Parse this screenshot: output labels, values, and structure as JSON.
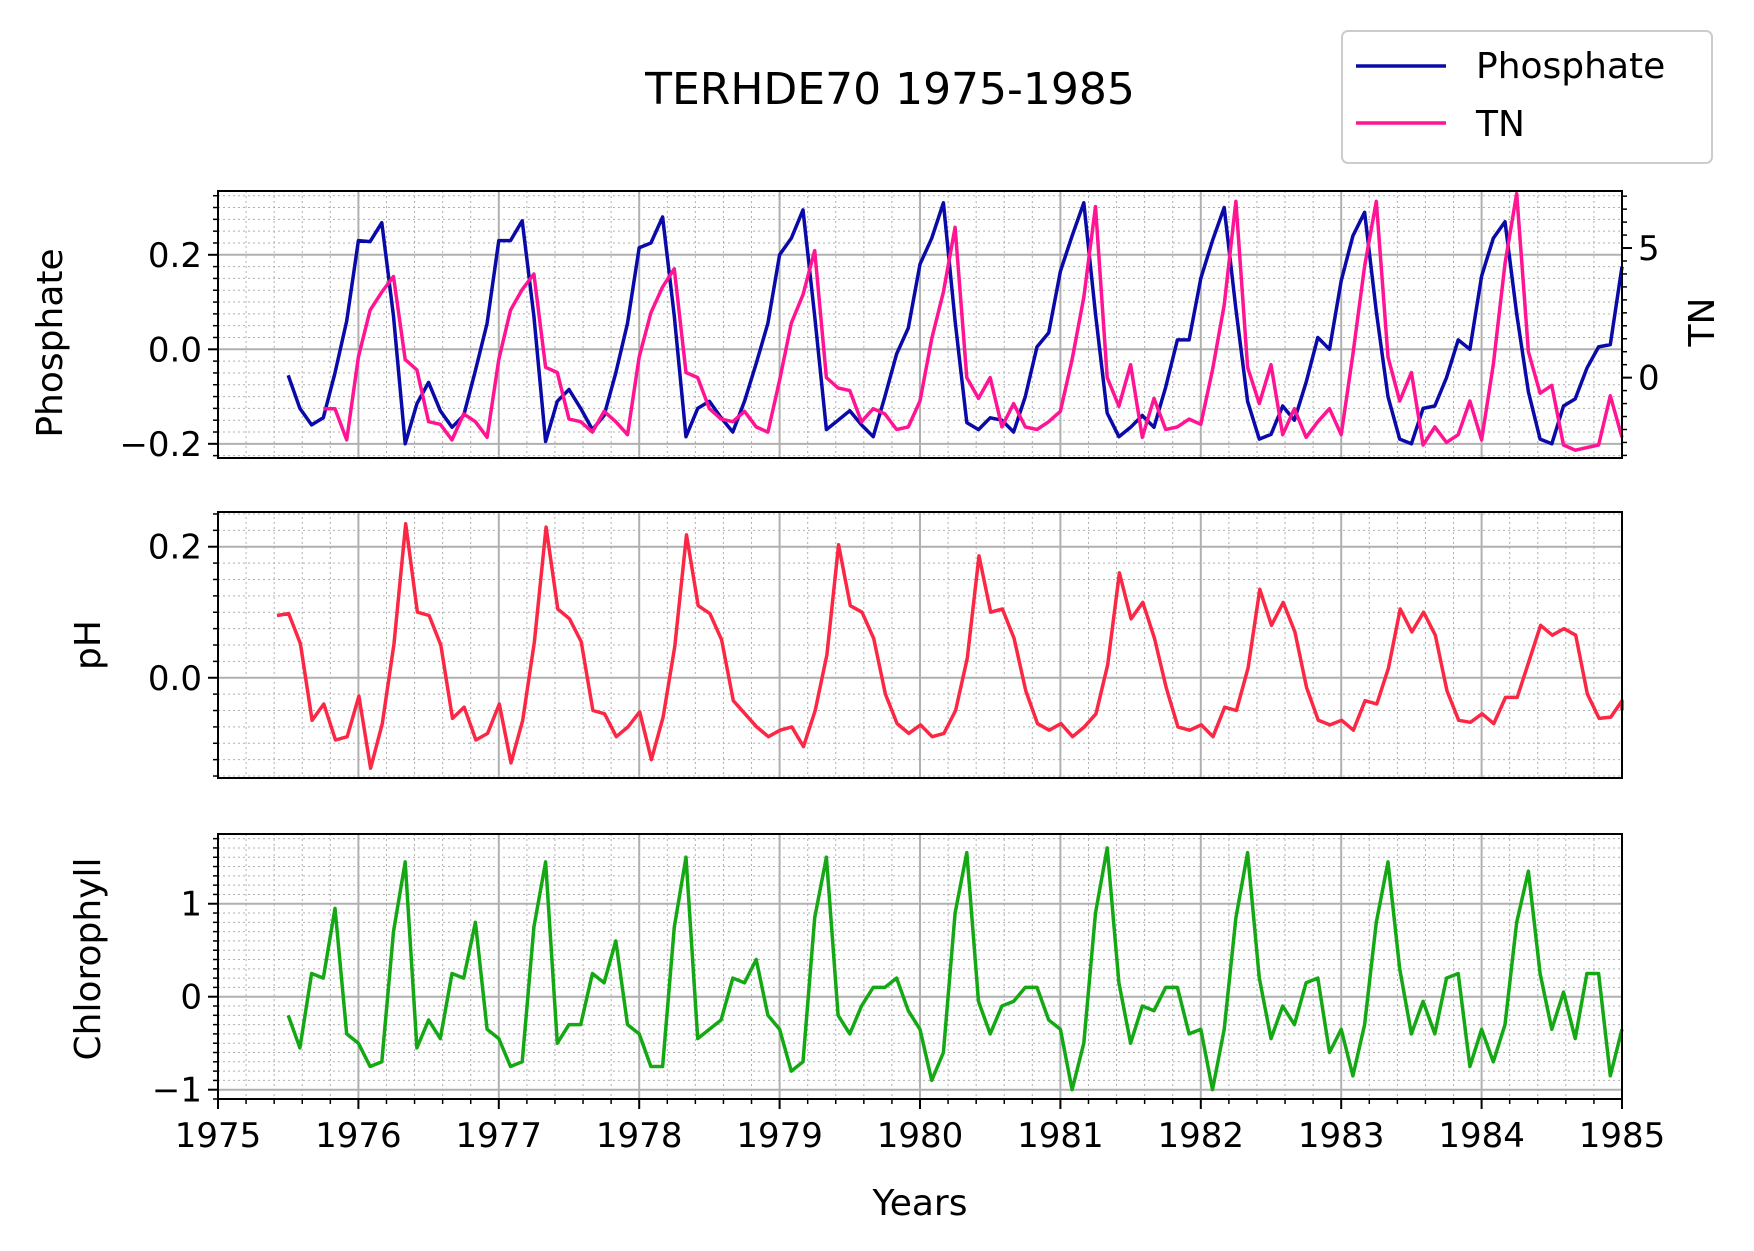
{
  "chart_data": [
    {
      "type": "line",
      "title": "TERHDE70 1975-1985",
      "ylabel": "Phosphate",
      "ylabel_right": "TN",
      "xlim": [
        1975,
        1985
      ],
      "ylim": [
        -0.23,
        0.335
      ],
      "ylim_right": [
        -3.1,
        7.2
      ],
      "yticks": [
        {
          "value": 0.2,
          "label": "0.2"
        },
        {
          "value": 0.0,
          "label": "0.0"
        },
        {
          "value": -0.2,
          "label": "−0.2"
        }
      ],
      "yticks_right": [
        {
          "value": 5,
          "label": "5"
        },
        {
          "value": 0,
          "label": "0"
        }
      ],
      "grid": true,
      "legend_position": "top-right, above panel",
      "series": [
        {
          "name": "Phosphate",
          "color": "#0a0aa8",
          "axis": "left",
          "x0": 1975.5,
          "step": 0.0833333,
          "values": [
            -0.055,
            -0.125,
            -0.16,
            -0.145,
            -0.05,
            0.06,
            0.23,
            0.228,
            0.268,
            0.07,
            -0.2,
            -0.115,
            -0.07,
            -0.13,
            -0.165,
            -0.14,
            -0.045,
            0.055,
            0.23,
            0.23,
            0.272,
            0.07,
            -0.195,
            -0.11,
            -0.085,
            -0.125,
            -0.17,
            -0.14,
            -0.05,
            0.055,
            0.215,
            0.225,
            0.28,
            0.07,
            -0.185,
            -0.125,
            -0.11,
            -0.145,
            -0.175,
            -0.11,
            -0.03,
            0.055,
            0.2,
            0.235,
            0.295,
            0.07,
            -0.17,
            -0.15,
            -0.13,
            -0.16,
            -0.185,
            -0.1,
            -0.01,
            0.045,
            0.18,
            0.235,
            0.31,
            0.06,
            -0.155,
            -0.17,
            -0.145,
            -0.15,
            -0.175,
            -0.1,
            0.005,
            0.035,
            0.165,
            0.24,
            0.31,
            0.075,
            -0.135,
            -0.185,
            -0.165,
            -0.14,
            -0.165,
            -0.08,
            0.02,
            0.02,
            0.15,
            0.23,
            0.3,
            0.085,
            -0.11,
            -0.19,
            -0.18,
            -0.12,
            -0.15,
            -0.07,
            0.025,
            0.0,
            0.145,
            0.24,
            0.29,
            0.08,
            -0.1,
            -0.19,
            -0.2,
            -0.125,
            -0.12,
            -0.06,
            0.02,
            0.0,
            0.155,
            0.235,
            0.27,
            0.075,
            -0.09,
            -0.19,
            -0.2,
            -0.12,
            -0.105,
            -0.04,
            0.005,
            0.01,
            0.175
          ]
        },
        {
          "name": "TN",
          "color": "#ff1493",
          "axis": "right",
          "x0": 1975.75,
          "step": 0.0833333,
          "values": [
            -1.2,
            -1.2,
            -2.4,
            0.8,
            2.6,
            3.3,
            3.9,
            0.7,
            0.3,
            -1.7,
            -1.8,
            -2.4,
            -1.4,
            -1.7,
            -2.3,
            0.7,
            2.6,
            3.4,
            4.0,
            0.4,
            0.2,
            -1.6,
            -1.7,
            -2.1,
            -1.3,
            -1.7,
            -2.2,
            0.8,
            2.5,
            3.5,
            4.2,
            0.2,
            0.0,
            -1.2,
            -1.6,
            -1.7,
            -1.3,
            -1.9,
            -2.1,
            -0.1,
            2.1,
            3.2,
            4.9,
            0.0,
            -0.4,
            -0.5,
            -1.7,
            -1.2,
            -1.4,
            -2.0,
            -1.9,
            -0.9,
            1.5,
            3.3,
            5.8,
            0.0,
            -0.8,
            0.0,
            -1.9,
            -1.0,
            -1.9,
            -2.0,
            -1.7,
            -1.3,
            0.7,
            3.1,
            6.6,
            0.0,
            -1.1,
            0.5,
            -2.3,
            -0.8,
            -2.0,
            -1.9,
            -1.6,
            -1.8,
            0.3,
            2.8,
            6.8,
            0.4,
            -1.0,
            0.5,
            -2.2,
            -1.2,
            -2.3,
            -1.7,
            -1.2,
            -2.2,
            0.9,
            4.3,
            6.8,
            0.8,
            -0.9,
            0.2,
            -2.6,
            -1.9,
            -2.5,
            -2.2,
            -0.9,
            -2.4,
            0.5,
            4.4,
            7.1,
            1.0,
            -0.6,
            -0.3,
            -2.6,
            -2.8,
            -2.7,
            -2.6,
            -0.7,
            -2.3
          ]
        }
      ]
    },
    {
      "type": "line",
      "ylabel": "pH",
      "xlim": [
        1975,
        1985
      ],
      "ylim": [
        -0.153,
        0.253
      ],
      "yticks": [
        {
          "value": 0.2,
          "label": "0.2"
        },
        {
          "value": 0.0,
          "label": "0.0"
        }
      ],
      "grid": true,
      "series": [
        {
          "color": "#fa2845",
          "x0": 1975.42,
          "step": 0.0833333,
          "values": [
            0.095,
            0.098,
            0.052,
            -0.065,
            -0.04,
            -0.095,
            -0.09,
            -0.028,
            -0.138,
            -0.07,
            0.052,
            0.235,
            0.1,
            0.095,
            0.05,
            -0.062,
            -0.045,
            -0.095,
            -0.085,
            -0.04,
            -0.13,
            -0.065,
            0.055,
            0.23,
            0.105,
            0.09,
            0.055,
            -0.05,
            -0.055,
            -0.09,
            -0.075,
            -0.052,
            -0.125,
            -0.06,
            0.048,
            0.218,
            0.11,
            0.098,
            0.058,
            -0.035,
            -0.055,
            -0.075,
            -0.09,
            -0.08,
            -0.075,
            -0.105,
            -0.05,
            0.035,
            0.203,
            0.11,
            0.1,
            0.06,
            -0.025,
            -0.07,
            -0.085,
            -0.072,
            -0.09,
            -0.085,
            -0.05,
            0.03,
            0.186,
            0.1,
            0.105,
            0.06,
            -0.02,
            -0.07,
            -0.08,
            -0.07,
            -0.09,
            -0.075,
            -0.055,
            0.02,
            0.16,
            0.09,
            0.115,
            0.06,
            -0.015,
            -0.075,
            -0.08,
            -0.072,
            -0.09,
            -0.045,
            -0.05,
            0.015,
            0.135,
            0.08,
            0.115,
            0.07,
            -0.015,
            -0.065,
            -0.072,
            -0.065,
            -0.08,
            -0.035,
            -0.04,
            0.015,
            0.105,
            0.07,
            0.1,
            0.065,
            -0.02,
            -0.065,
            -0.068,
            -0.055,
            -0.07,
            -0.03,
            -0.03,
            0.025,
            0.08,
            0.065,
            0.075,
            0.065,
            -0.025,
            -0.062,
            -0.06,
            -0.035,
            -0.05
          ]
        }
      ]
    },
    {
      "type": "line",
      "ylabel": "Chlorophyll",
      "xlabel": "Years",
      "xlim": [
        1975,
        1985
      ],
      "ylim": [
        -1.1,
        1.75
      ],
      "yticks": [
        {
          "value": 1,
          "label": "1"
        },
        {
          "value": 0,
          "label": "0"
        },
        {
          "value": -1,
          "label": "−1"
        }
      ],
      "xticks": [
        {
          "value": 1975,
          "label": "1975"
        },
        {
          "value": 1976,
          "label": "1976"
        },
        {
          "value": 1977,
          "label": "1977"
        },
        {
          "value": 1978,
          "label": "1978"
        },
        {
          "value": 1979,
          "label": "1979"
        },
        {
          "value": 1980,
          "label": "1980"
        },
        {
          "value": 1981,
          "label": "1981"
        },
        {
          "value": 1982,
          "label": "1982"
        },
        {
          "value": 1983,
          "label": "1983"
        },
        {
          "value": 1984,
          "label": "1984"
        },
        {
          "value": 1985,
          "label": "1985"
        }
      ],
      "grid": true,
      "series": [
        {
          "color": "#14a814",
          "x0": 1975.5,
          "step": 0.0833333,
          "values": [
            -0.2,
            -0.55,
            0.25,
            0.2,
            0.95,
            -0.4,
            -0.5,
            -0.75,
            -0.7,
            0.7,
            1.45,
            -0.55,
            -0.25,
            -0.45,
            0.25,
            0.2,
            0.8,
            -0.35,
            -0.45,
            -0.75,
            -0.7,
            0.75,
            1.45,
            -0.5,
            -0.3,
            -0.3,
            0.25,
            0.15,
            0.6,
            -0.3,
            -0.4,
            -0.75,
            -0.75,
            0.75,
            1.5,
            -0.45,
            -0.35,
            -0.25,
            0.2,
            0.15,
            0.4,
            -0.2,
            -0.35,
            -0.8,
            -0.7,
            0.85,
            1.5,
            -0.2,
            -0.4,
            -0.1,
            0.1,
            0.1,
            0.2,
            -0.15,
            -0.35,
            -0.9,
            -0.6,
            0.9,
            1.55,
            -0.05,
            -0.4,
            -0.1,
            -0.05,
            0.1,
            0.1,
            -0.25,
            -0.35,
            -1.0,
            -0.5,
            0.9,
            1.6,
            0.15,
            -0.5,
            -0.1,
            -0.15,
            0.1,
            0.1,
            -0.4,
            -0.35,
            -1.0,
            -0.35,
            0.85,
            1.55,
            0.2,
            -0.45,
            -0.1,
            -0.3,
            0.15,
            0.2,
            -0.6,
            -0.35,
            -0.85,
            -0.3,
            0.8,
            1.45,
            0.3,
            -0.4,
            -0.05,
            -0.4,
            0.2,
            0.25,
            -0.75,
            -0.35,
            -0.7,
            -0.3,
            0.8,
            1.35,
            0.25,
            -0.35,
            0.05,
            -0.45,
            0.25,
            0.25,
            -0.85,
            -0.35
          ]
        }
      ]
    }
  ]
}
